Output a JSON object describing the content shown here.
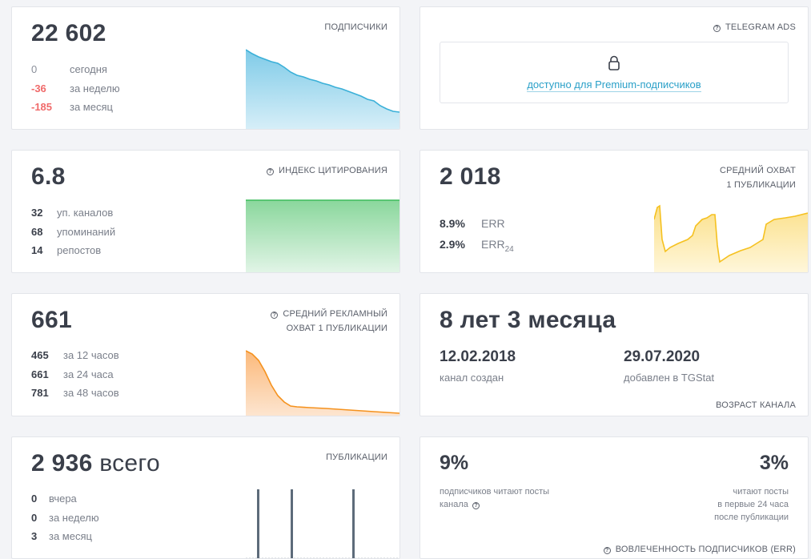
{
  "subscribers": {
    "value": "22 602",
    "title": "ПОДПИСЧИКИ",
    "rows": [
      {
        "num": "0",
        "label": "сегодня"
      },
      {
        "num": "-36",
        "label": "за неделю"
      },
      {
        "num": "-185",
        "label": "за месяц"
      }
    ]
  },
  "ads": {
    "title": "TELEGRAM ADS",
    "link": "доступно для Premium-подписчиков"
  },
  "citation": {
    "value": "6.8",
    "title": "ИНДЕКС ЦИТИРОВАНИЯ",
    "rows": [
      {
        "num": "32",
        "label": "уп. каналов"
      },
      {
        "num": "68",
        "label": "упоминаний"
      },
      {
        "num": "14",
        "label": "репостов"
      }
    ]
  },
  "reach": {
    "value": "2 018",
    "title_line1": "СРЕДНИЙ ОХВАТ",
    "title_line2": "1 ПУБЛИКАЦИИ",
    "err": "8.9%",
    "err_label": "ERR",
    "err24": "2.9%",
    "err24_label": "ERR",
    "err24_sub": "24"
  },
  "ad_reach": {
    "value": "661",
    "title_line1": "СРЕДНИЙ РЕКЛАМНЫЙ",
    "title_line2": "ОХВАТ 1 ПУБЛИКАЦИИ",
    "rows": [
      {
        "num": "465",
        "label": "за 12 часов"
      },
      {
        "num": "661",
        "label": "за 24 часа"
      },
      {
        "num": "781",
        "label": "за 48 часов"
      }
    ]
  },
  "age": {
    "value": "8 лет 3 месяца",
    "created_date": "12.02.2018",
    "created_label": "канал создан",
    "added_date": "29.07.2020",
    "added_label": "добавлен в TGStat",
    "title": "ВОЗРАСТ КАНАЛА"
  },
  "posts": {
    "value": "2 936",
    "unit": "всего",
    "title": "ПУБЛИКАЦИИ",
    "rows": [
      {
        "num": "0",
        "label": "вчера"
      },
      {
        "num": "0",
        "label": "за неделю"
      },
      {
        "num": "3",
        "label": "за месяц"
      }
    ]
  },
  "engagement": {
    "pct1": "9%",
    "desc1_line1": "подписчиков читают посты",
    "desc1_line2": "канала",
    "pct2": "3%",
    "desc2_line1": "читают посты",
    "desc2_line2": "в первые 24 часа",
    "desc2_line3": "после публикации",
    "title": "ВОВЛЕЧЕННОСТЬ ПОДПИСЧИКОВ (ERR)"
  },
  "colors": {
    "subs_line": "#3bb0d8",
    "citation_line": "#3cbc5c",
    "reach_line": "#f5c120",
    "ad_line": "#f5921e",
    "posts_bar": "#5d6b7a",
    "negative": "#f06a6a",
    "link": "#2aa0c8"
  }
}
